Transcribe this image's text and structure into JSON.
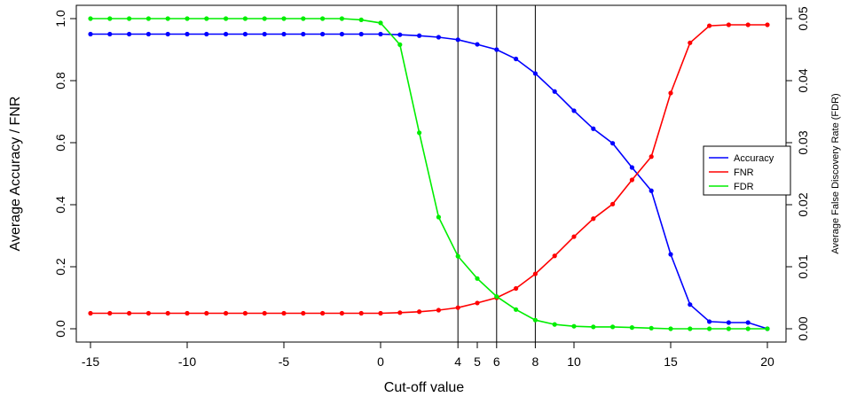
{
  "chart_data": {
    "type": "line",
    "xlabel": "Cut-off value",
    "ylabel_left": "Average Accuracy / FNR",
    "ylabel_right": "Average False Discovery Rate (FDR)",
    "xlim": [
      -15,
      20
    ],
    "ylim_left": [
      0,
      1
    ],
    "ylim_right": [
      0,
      0.05
    ],
    "x_ticks": [
      -15,
      -10,
      -5,
      0,
      4,
      5,
      6,
      8,
      10,
      15,
      20
    ],
    "x_tick_labels": [
      "-15",
      "-10",
      "-5",
      "0",
      "4",
      "5",
      "6",
      "8",
      "10",
      "15",
      "20"
    ],
    "y_left_ticks": [
      0,
      0.2,
      0.4,
      0.6,
      0.8,
      1.0
    ],
    "y_left_tick_labels": [
      "0.0",
      "0.2",
      "0.4",
      "0.6",
      "0.8",
      "1.0"
    ],
    "y_right_ticks": [
      0,
      0.01,
      0.02,
      0.03,
      0.04,
      0.05
    ],
    "y_right_tick_labels": [
      "0.00",
      "0.01",
      "0.02",
      "0.03",
      "0.04",
      "0.05"
    ],
    "vertical_lines": [
      4,
      6,
      8
    ],
    "legend_position": "right",
    "x": [
      -15,
      -14,
      -13,
      -12,
      -11,
      -10,
      -9,
      -8,
      -7,
      -6,
      -5,
      -4,
      -3,
      -2,
      -1,
      0,
      1,
      2,
      3,
      4,
      5,
      6,
      7,
      8,
      9,
      10,
      11,
      12,
      13,
      14,
      15,
      16,
      17,
      18,
      19,
      20
    ],
    "series": [
      {
        "name": "Accuracy",
        "color": "#0000ff",
        "axis": "left",
        "values": [
          0.95,
          0.95,
          0.95,
          0.95,
          0.95,
          0.95,
          0.95,
          0.95,
          0.95,
          0.95,
          0.95,
          0.95,
          0.95,
          0.95,
          0.95,
          0.95,
          0.948,
          0.945,
          0.94,
          0.932,
          0.917,
          0.9,
          0.87,
          0.823,
          0.765,
          0.703,
          0.645,
          0.598,
          0.52,
          0.445,
          0.24,
          0.078,
          0.023,
          0.02,
          0.02,
          0.0
        ]
      },
      {
        "name": "FNR",
        "color": "#ff0000",
        "axis": "left",
        "values": [
          0.05,
          0.05,
          0.05,
          0.05,
          0.05,
          0.05,
          0.05,
          0.05,
          0.05,
          0.05,
          0.05,
          0.05,
          0.05,
          0.05,
          0.05,
          0.05,
          0.052,
          0.055,
          0.06,
          0.068,
          0.083,
          0.1,
          0.13,
          0.177,
          0.235,
          0.297,
          0.355,
          0.402,
          0.48,
          0.555,
          0.76,
          0.922,
          0.977,
          0.98,
          0.98,
          0.98
        ]
      },
      {
        "name": "FDR",
        "color": "#00ee00",
        "axis": "right",
        "values": [
          0.05,
          0.05,
          0.05,
          0.05,
          0.05,
          0.05,
          0.05,
          0.05,
          0.05,
          0.05,
          0.05,
          0.05,
          0.05,
          0.05,
          0.0498,
          0.0493,
          0.0458,
          0.0316,
          0.018,
          0.0117,
          0.0081,
          0.0052,
          0.0031,
          0.0014,
          0.0007,
          0.0004,
          0.0003,
          0.0003,
          0.0002,
          0.0001,
          0.0,
          0.0,
          0.0,
          0.0,
          0.0,
          0.0
        ]
      }
    ]
  }
}
